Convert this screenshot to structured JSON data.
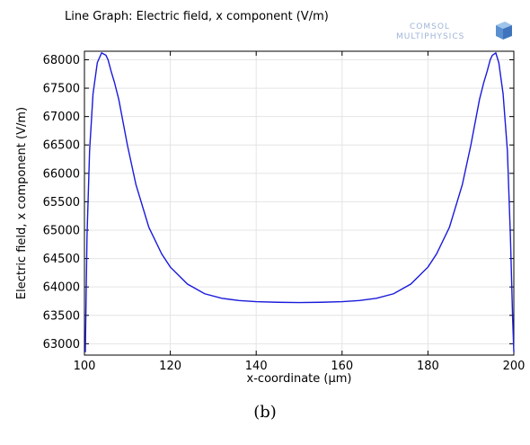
{
  "chart_data": {
    "type": "line",
    "title": "Line Graph: Electric field, x component (V/m)",
    "xlabel": "x-coordinate (µm)",
    "ylabel": "Electric field, x component (V/m)",
    "xlim": [
      100,
      200
    ],
    "ylim": [
      62800,
      68150
    ],
    "xticks": [
      100,
      120,
      140,
      160,
      180,
      200
    ],
    "yticks": [
      63000,
      63500,
      64000,
      64500,
      65000,
      65500,
      66000,
      66500,
      67000,
      67500,
      68000
    ],
    "grid": true,
    "series": [
      {
        "color": "#1a1adb",
        "x": [
          100.2,
          100.6,
          101.2,
          102,
          103,
          104,
          105,
          105.5,
          106.2,
          107,
          108,
          110,
          112,
          115,
          118,
          120,
          124,
          128,
          132,
          136,
          140,
          145,
          150,
          155,
          160,
          164,
          168,
          172,
          176,
          180,
          182,
          185,
          188,
          190,
          192,
          193,
          193.8,
          194.5,
          195,
          195.8,
          196.5,
          197.5,
          198.5,
          199.2,
          199.7,
          200
        ],
        "y": [
          62850,
          64900,
          66400,
          67400,
          67950,
          68120,
          68080,
          68000,
          67800,
          67600,
          67300,
          66500,
          65800,
          65050,
          64580,
          64350,
          64050,
          63880,
          63800,
          63760,
          63740,
          63730,
          63725,
          63730,
          63740,
          63760,
          63800,
          63880,
          64050,
          64350,
          64580,
          65050,
          65800,
          66500,
          67300,
          67600,
          67800,
          68000,
          68080,
          68120,
          67950,
          67400,
          66400,
          64900,
          63500,
          62850
        ]
      }
    ]
  },
  "logo": {
    "line1": "COMSOL",
    "line2": "MULTIPHYSICS"
  },
  "caption": "(b)"
}
